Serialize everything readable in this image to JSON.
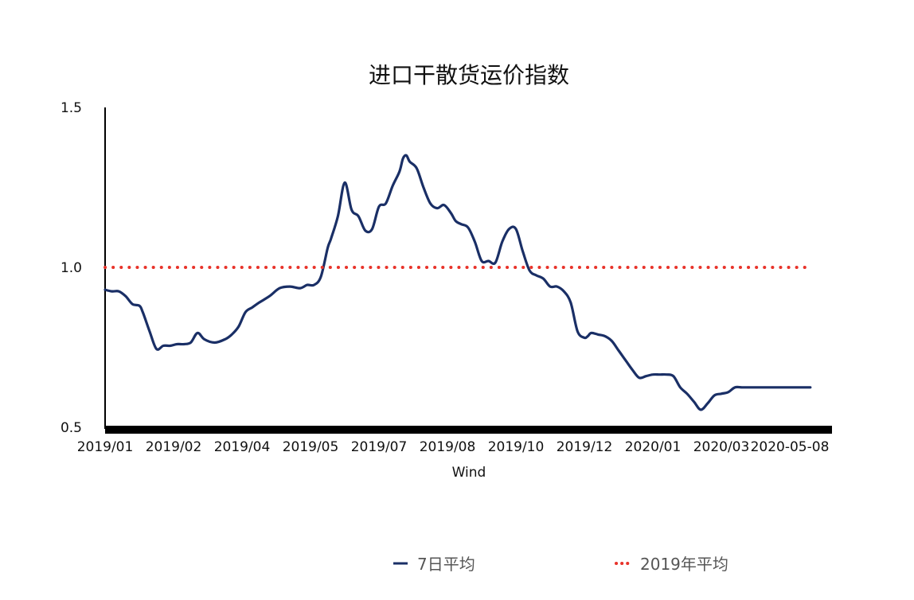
{
  "chart_data": {
    "type": "line",
    "title": "进口干散货运价指数",
    "xlabel": "Wind",
    "ylabel": "",
    "ylim": [
      0.5,
      1.5
    ],
    "yticks": [
      "0.5",
      "1.0",
      "1.5"
    ],
    "xticks": [
      "2019/01",
      "2019/02",
      "2019/04",
      "2019/05",
      "2019/07",
      "2019/08",
      "2019/10",
      "2019/12",
      "2020/01",
      "2020/03",
      "2020-05-08"
    ],
    "grid": false,
    "legend_position": "bottom",
    "colors": {
      "series1": "#1a2f66",
      "series2": "#e8332a"
    },
    "series": [
      {
        "name": "7日平均",
        "style": "solid",
        "x_index": [
          0,
          0.1,
          0.2,
          0.3,
          0.4,
          0.5,
          0.55,
          0.65,
          0.75,
          0.85,
          0.95,
          1.05,
          1.15,
          1.25,
          1.35,
          1.45,
          1.6,
          1.75,
          1.85,
          1.95,
          2.05,
          2.15,
          2.25,
          2.4,
          2.55,
          2.7,
          2.85,
          2.95,
          3.05,
          3.15,
          3.25,
          3.3,
          3.4,
          3.5,
          3.6,
          3.7,
          3.8,
          3.9,
          4.0,
          4.1,
          4.2,
          4.3,
          4.35,
          4.4,
          4.45,
          4.55,
          4.65,
          4.75,
          4.85,
          4.95,
          5.05,
          5.12,
          5.2,
          5.3,
          5.4,
          5.5,
          5.6,
          5.7,
          5.8,
          5.9,
          6.0,
          6.1,
          6.2,
          6.3,
          6.4,
          6.5,
          6.6,
          6.7,
          6.8,
          6.9,
          7.0,
          7.05,
          7.1,
          7.2,
          7.3,
          7.4,
          7.5,
          7.6,
          7.7,
          7.8,
          7.9,
          8.0,
          8.1,
          8.2,
          8.3,
          8.4,
          8.5,
          8.6,
          8.7,
          8.8,
          8.9,
          9.0,
          9.1,
          9.2,
          9.3,
          9.4,
          9.5,
          9.6,
          9.7,
          9.8,
          9.9,
          10.0,
          10.1,
          10.2,
          10.3
        ],
        "values": [
          0.93,
          0.925,
          0.925,
          0.91,
          0.885,
          0.88,
          0.86,
          0.8,
          0.745,
          0.755,
          0.755,
          0.76,
          0.76,
          0.765,
          0.795,
          0.775,
          0.765,
          0.775,
          0.79,
          0.815,
          0.86,
          0.875,
          0.89,
          0.91,
          0.935,
          0.94,
          0.935,
          0.945,
          0.945,
          0.97,
          1.06,
          1.09,
          1.16,
          1.265,
          1.18,
          1.16,
          1.115,
          1.12,
          1.19,
          1.2,
          1.255,
          1.3,
          1.34,
          1.35,
          1.33,
          1.31,
          1.25,
          1.2,
          1.185,
          1.195,
          1.17,
          1.145,
          1.135,
          1.125,
          1.08,
          1.02,
          1.02,
          1.015,
          1.08,
          1.12,
          1.12,
          1.05,
          0.99,
          0.975,
          0.965,
          0.94,
          0.94,
          0.925,
          0.89,
          0.8,
          0.78,
          0.785,
          0.795,
          0.79,
          0.785,
          0.77,
          0.74,
          0.71,
          0.68,
          0.655,
          0.66,
          0.665,
          0.665,
          0.665,
          0.66,
          0.625,
          0.605,
          0.58,
          0.555,
          0.575,
          0.6,
          0.605,
          0.61,
          0.625,
          0.625,
          0.625,
          0.625,
          0.625,
          0.625,
          0.625,
          0.625,
          0.625,
          0.625,
          0.625,
          0.625
        ]
      },
      {
        "name": "2019年平均",
        "style": "dotted",
        "x_index": [
          0,
          10.3
        ],
        "values": [
          1.0,
          1.0
        ]
      }
    ]
  }
}
